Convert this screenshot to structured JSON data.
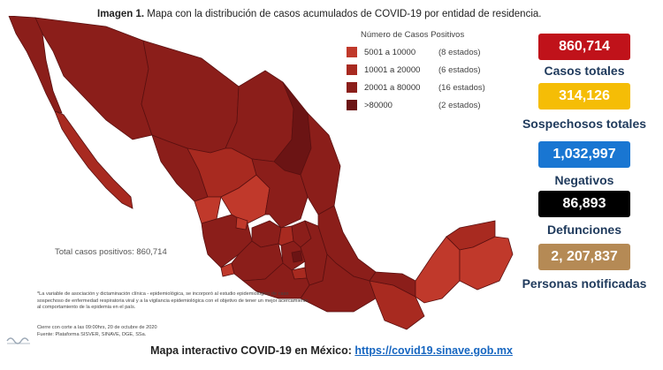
{
  "title": {
    "prefix": "Imagen 1.",
    "text": "Mapa con la distribución de casos acumulados de COVID-19 por entidad de residencia."
  },
  "legend": {
    "title": "Número de Casos Positivos",
    "items": [
      {
        "range": "5001 a  10000",
        "count": "(8 estados)",
        "color": "#c0392b"
      },
      {
        "range": "10001 a  20000",
        "count": "(6 estados)",
        "color": "#a82a20"
      },
      {
        "range": "20001 a  80000",
        "count": "(16 estados)",
        "color": "#8b1e1a"
      },
      {
        "range": ">80000",
        "count": "(2 estados)",
        "color": "#6b1414"
      }
    ]
  },
  "map_total": "Total casos positivos: 860,714",
  "stats": [
    {
      "value": "860,714",
      "label": "Casos totales",
      "color": "#c0121a",
      "text_color": "#ffffff"
    },
    {
      "value": "314,126",
      "label": "Sospechosos totales",
      "color": "#f5bd06",
      "text_color": "#ffffff"
    },
    {
      "value": "1,032,997",
      "label": "Negativos",
      "color": "#1976d2",
      "text_color": "#ffffff"
    },
    {
      "value": "86,893",
      "label": "Defunciones",
      "color": "#000000",
      "text_color": "#ffffff"
    },
    {
      "value": "2, 207,837",
      "label": "Personas notificadas",
      "color": "#b58a55",
      "text_color": "#ffffff"
    }
  ],
  "footnote": "*La variable de asociación y dictaminación clínica - epidemiológica, se incorporó al estudio epidemiológico de caso sospechoso de enfermedad respiratoria viral y a la vigilancia epidemiológica con el objetivo de tener un mejor acercamiento al comportamiento de la epidemia en el país.",
  "cierre": "Cierre con corte a las 09:00hrs, 20 de octubre de 2020",
  "fuente": "Fuente: Plataforma SISVER, SINAVE, DGE, SSa.",
  "bottom": {
    "text": "Mapa interactivo COVID-19 en México:",
    "url": "https://covid19.sinave.gob.mx"
  }
}
